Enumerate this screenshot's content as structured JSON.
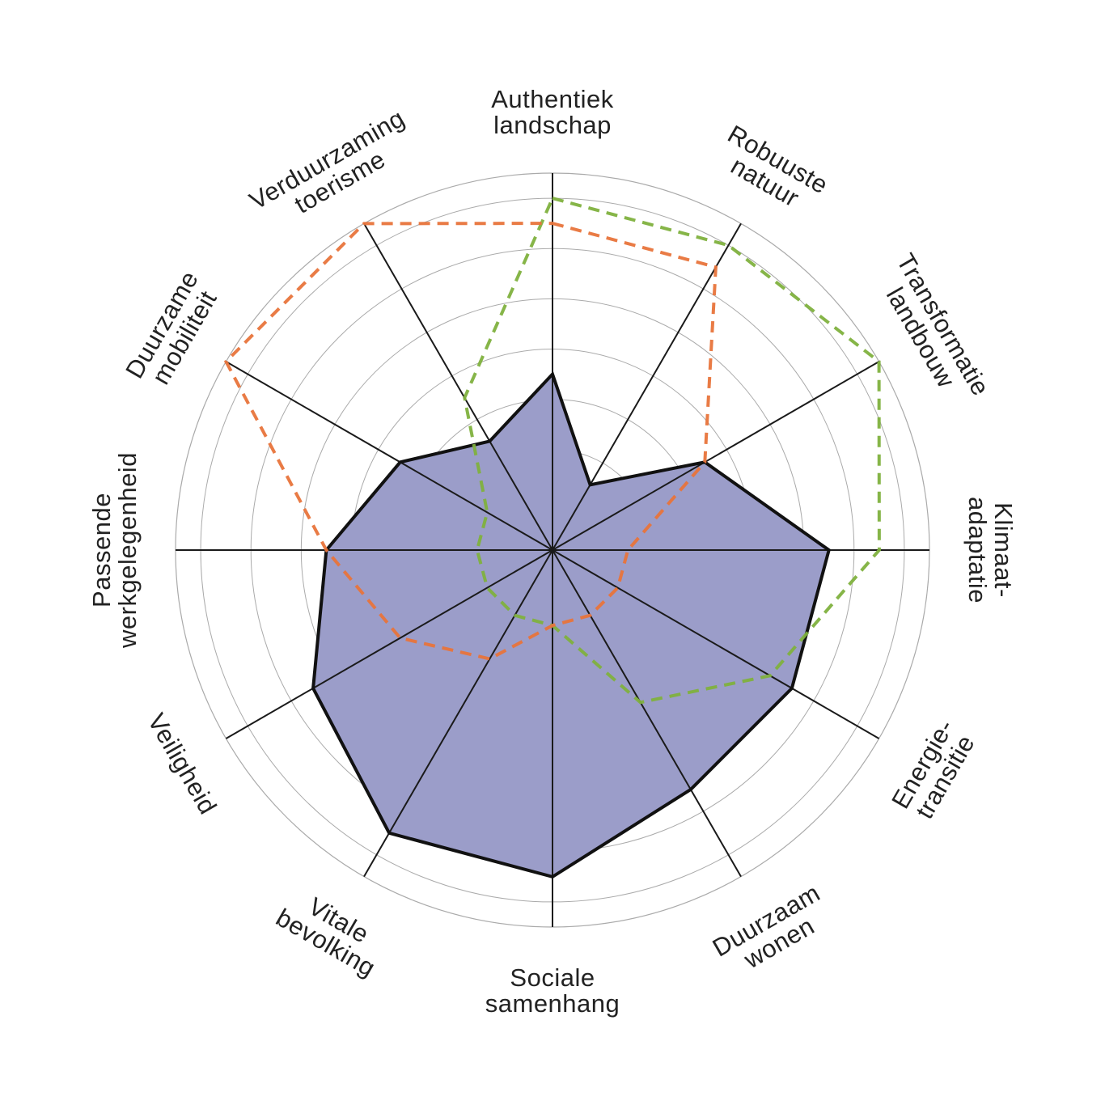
{
  "chart_data": {
    "type": "radar",
    "axes": [
      [
        "Authentiek",
        "landschap"
      ],
      [
        "Robuuste",
        "natuur"
      ],
      [
        "Transformatie",
        "landbouw"
      ],
      [
        "Klimaat-",
        "adaptatie"
      ],
      [
        "Energie-",
        "transitie"
      ],
      [
        "Duurzaam",
        "wonen"
      ],
      [
        "Sociale",
        "samenhang"
      ],
      [
        "Vitale",
        "bevolking"
      ],
      [
        "Veiligheid"
      ],
      [
        "Passende",
        "werkgelegenheid"
      ],
      [
        "Duurzame",
        "mobiliteit"
      ],
      [
        "Verduurzaming",
        "toerisme"
      ]
    ],
    "rings": 7,
    "range": [
      0,
      7.5
    ],
    "series": [
      {
        "style": "filled",
        "fill": "#9b9dc9",
        "stroke": "#111111",
        "values": [
          3.5,
          1.5,
          3.5,
          5.5,
          5.5,
          5.5,
          6.5,
          6.5,
          5.5,
          4.5,
          3.5,
          2.5
        ]
      },
      {
        "style": "dashed",
        "stroke": "#7fb13e",
        "values": [
          7,
          7,
          7.5,
          6.5,
          5,
          3.5,
          1.5,
          1.5,
          1.5,
          1.5,
          1.5,
          3.5
        ]
      },
      {
        "style": "dashed",
        "stroke": "#e8743b",
        "values": [
          6.5,
          6.5,
          3.5,
          1.5,
          1.5,
          1.5,
          1.5,
          2.5,
          3.5,
          4.5,
          7.5,
          7.5
        ]
      }
    ],
    "colors": {
      "grid": "#aaaaaa",
      "spoke": "#1a1a1a",
      "label": "#222222"
    }
  }
}
